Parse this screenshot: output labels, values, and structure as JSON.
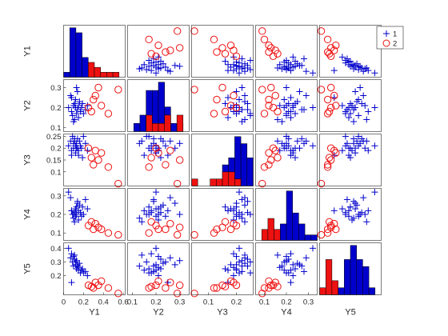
{
  "chart_data": {
    "type": "scatter",
    "title": "",
    "variables": [
      "Y1",
      "Y2",
      "Y3",
      "Y4",
      "Y5"
    ],
    "axis_labels": {
      "rows": [
        "Y1",
        "Y2",
        "Y3",
        "Y4",
        "Y5"
      ],
      "columns": [
        "Y1",
        "Y2",
        "Y3",
        "Y4",
        "Y5"
      ]
    },
    "ranges": [
      [
        0,
        0.62
      ],
      [
        0.08,
        0.34
      ],
      [
        0.04,
        0.26
      ],
      [
        0.06,
        0.34
      ],
      [
        0.06,
        0.44
      ]
    ],
    "ticks": {
      "x": [
        [
          0,
          0.2,
          0.4,
          0.6
        ],
        [
          0.1,
          0.2,
          0.3
        ],
        [
          0.1,
          0.2
        ],
        [
          0.1,
          0.2,
          0.3
        ],
        []
      ],
      "y": [
        [],
        [
          0.1,
          0.2,
          0.3
        ],
        [
          0.1,
          0.15,
          0.2,
          0.25
        ],
        [
          0.1,
          0.2,
          0.3
        ],
        [
          0.2,
          0.3,
          0.4
        ]
      ]
    },
    "tick_labels": {
      "x": [
        [
          "0",
          "0.2",
          "0.4",
          "0.6"
        ],
        [
          "0.1",
          "0.2",
          "0.3"
        ],
        [
          "0.1",
          "0.2"
        ],
        [
          "0.1",
          "0.2",
          "0.3"
        ],
        []
      ],
      "y": [
        [],
        [
          "0.1",
          "0.2",
          "0.3"
        ],
        [
          "0.1",
          "0.15",
          "0.2",
          "0.25"
        ],
        [
          "0.1",
          "0.2",
          "0.3"
        ],
        [
          "0.2",
          "0.3",
          "0.4"
        ]
      ]
    },
    "legend": {
      "position": "top-right",
      "entries": [
        "1",
        "2"
      ]
    },
    "series": [
      {
        "name": "1",
        "marker": "plus",
        "color": "#0000cc",
        "points": [
          [
            0.05,
            0.2,
            0.21,
            0.32,
            0.4
          ],
          [
            0.07,
            0.26,
            0.23,
            0.29,
            0.33
          ],
          [
            0.08,
            0.18,
            0.19,
            0.22,
            0.36
          ],
          [
            0.09,
            0.16,
            0.25,
            0.2,
            0.3
          ],
          [
            0.1,
            0.21,
            0.2,
            0.2,
            0.34
          ],
          [
            0.1,
            0.13,
            0.22,
            0.18,
            0.27
          ],
          [
            0.11,
            0.22,
            0.24,
            0.21,
            0.32
          ],
          [
            0.12,
            0.2,
            0.18,
            0.23,
            0.28
          ],
          [
            0.12,
            0.24,
            0.21,
            0.19,
            0.3
          ],
          [
            0.13,
            0.17,
            0.2,
            0.24,
            0.25
          ],
          [
            0.13,
            0.3,
            0.22,
            0.2,
            0.31
          ],
          [
            0.14,
            0.19,
            0.24,
            0.27,
            0.27
          ],
          [
            0.15,
            0.21,
            0.19,
            0.17,
            0.26
          ],
          [
            0.15,
            0.15,
            0.17,
            0.22,
            0.24
          ],
          [
            0.16,
            0.23,
            0.23,
            0.25,
            0.29
          ],
          [
            0.17,
            0.18,
            0.21,
            0.21,
            0.22
          ],
          [
            0.18,
            0.2,
            0.2,
            0.19,
            0.24
          ],
          [
            0.19,
            0.22,
            0.16,
            0.24,
            0.25
          ],
          [
            0.2,
            0.17,
            0.25,
            0.2,
            0.22
          ],
          [
            0.22,
            0.19,
            0.22,
            0.28,
            0.23
          ],
          [
            0.24,
            0.21,
            0.19,
            0.23,
            0.2
          ],
          [
            0.08,
            0.25,
            0.17,
            0.22,
            0.15
          ],
          [
            0.11,
            0.14,
            0.23,
            0.16,
            0.35
          ],
          [
            0.14,
            0.28,
            0.2,
            0.26,
            0.28
          ]
        ]
      },
      {
        "name": "2",
        "marker": "circle",
        "color": "#ee1111",
        "points": [
          [
            0.25,
            0.2,
            0.2,
            0.14,
            0.13
          ],
          [
            0.28,
            0.18,
            0.16,
            0.16,
            0.12
          ],
          [
            0.3,
            0.24,
            0.13,
            0.12,
            0.11
          ],
          [
            0.32,
            0.26,
            0.19,
            0.15,
            0.15
          ],
          [
            0.35,
            0.3,
            0.15,
            0.13,
            0.13
          ],
          [
            0.38,
            0.21,
            0.18,
            0.12,
            0.16
          ],
          [
            0.45,
            0.17,
            0.12,
            0.1,
            0.11
          ],
          [
            0.55,
            0.29,
            0.05,
            0.09,
            0.07
          ]
        ]
      }
    ]
  }
}
